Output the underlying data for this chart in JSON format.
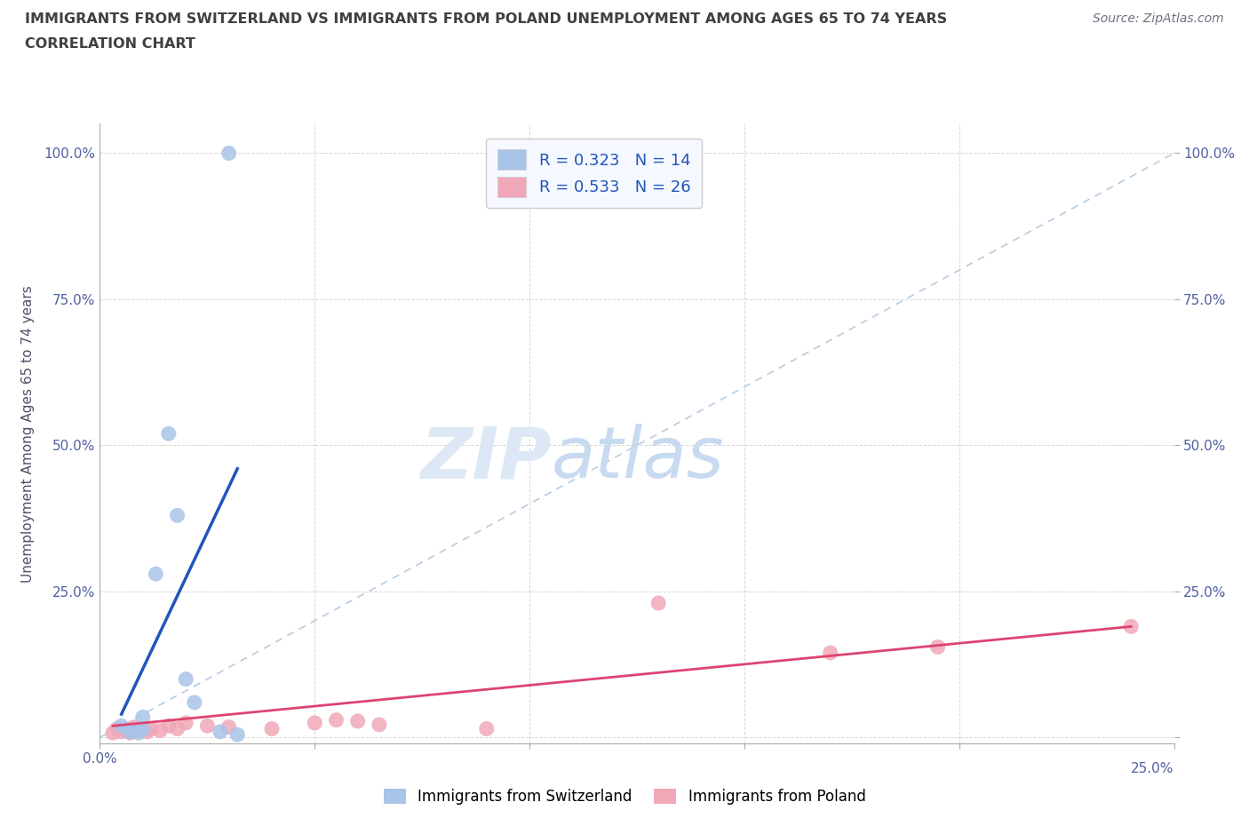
{
  "title_line1": "IMMIGRANTS FROM SWITZERLAND VS IMMIGRANTS FROM POLAND UNEMPLOYMENT AMONG AGES 65 TO 74 YEARS",
  "title_line2": "CORRELATION CHART",
  "source_text": "Source: ZipAtlas.com",
  "ylabel": "Unemployment Among Ages 65 to 74 years",
  "xlim": [
    0.0,
    0.25
  ],
  "ylim": [
    -0.01,
    1.05
  ],
  "xticks": [
    0.0,
    0.05,
    0.1,
    0.15,
    0.2,
    0.25
  ],
  "yticks": [
    0.0,
    0.25,
    0.5,
    0.75,
    1.0
  ],
  "xticklabels_bottom": [
    "0.0%",
    "",
    "",
    "",
    "",
    ""
  ],
  "xticklabels_right": [
    "25.0%"
  ],
  "yticklabels_left": [
    "",
    "25.0%",
    "50.0%",
    "75.0%",
    "100.0%"
  ],
  "yticklabels_right": [
    "",
    "25.0%",
    "50.0%",
    "75.0%",
    "100.0%"
  ],
  "switzerland_color": "#a8c4e8",
  "poland_color": "#f0a8b8",
  "trend_switzerland_color": "#2255bb",
  "trend_poland_color": "#dd4470",
  "diagonal_color": "#b8cce0",
  "watermark_color": "#dce8f5",
  "watermark_text": "ZIPatlas",
  "R_switzerland": 0.323,
  "N_switzerland": 14,
  "R_poland": 0.533,
  "N_poland": 26,
  "switzerland_x": [
    0.005,
    0.007,
    0.008,
    0.009,
    0.01,
    0.01,
    0.013,
    0.016,
    0.018,
    0.02,
    0.022,
    0.028,
    0.03,
    0.032
  ],
  "switzerland_y": [
    0.02,
    0.01,
    0.012,
    0.008,
    0.015,
    0.035,
    0.28,
    0.52,
    0.38,
    0.1,
    0.06,
    0.01,
    1.0,
    0.005
  ],
  "poland_x": [
    0.003,
    0.004,
    0.005,
    0.006,
    0.007,
    0.008,
    0.009,
    0.01,
    0.011,
    0.012,
    0.014,
    0.016,
    0.018,
    0.02,
    0.025,
    0.03,
    0.04,
    0.05,
    0.055,
    0.06,
    0.065,
    0.09,
    0.13,
    0.17,
    0.195,
    0.24
  ],
  "poland_y": [
    0.008,
    0.015,
    0.01,
    0.012,
    0.008,
    0.018,
    0.012,
    0.015,
    0.01,
    0.015,
    0.012,
    0.02,
    0.015,
    0.025,
    0.02,
    0.018,
    0.015,
    0.025,
    0.03,
    0.028,
    0.022,
    0.015,
    0.23,
    0.145,
    0.155,
    0.19
  ],
  "sw_trend_x": [
    0.005,
    0.032
  ],
  "sw_trend_y": [
    0.04,
    0.46
  ],
  "pl_trend_x": [
    0.003,
    0.24
  ],
  "pl_trend_y": [
    0.02,
    0.19
  ],
  "background_color": "#ffffff",
  "grid_color": "#cccccc",
  "title_color": "#404040",
  "axis_label_color": "#505068",
  "tick_color": "#5060a0",
  "legend_box_color": "#f5f8ff",
  "legend_r_color": "#000000",
  "legend_n_color": "#2255bb"
}
